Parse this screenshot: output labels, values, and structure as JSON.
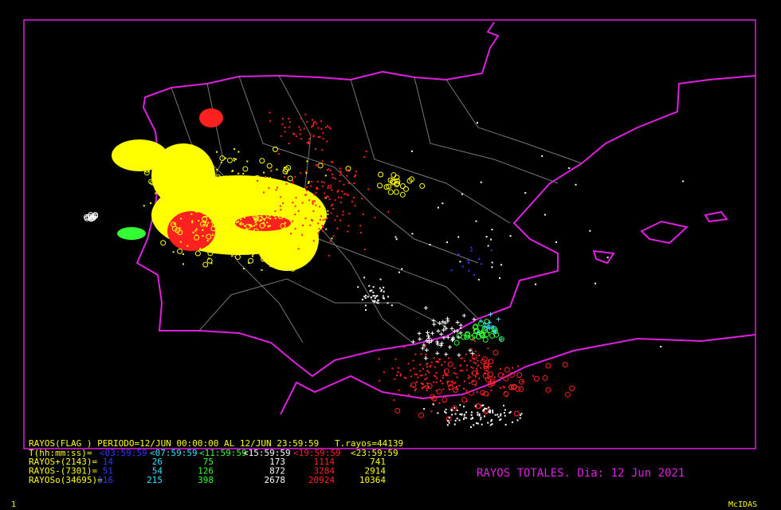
{
  "header": {
    "line": "RAYOS(FLAG ) PERIODO=12/JUN 00:00:00 AL 12/JUN 23:59:59",
    "total": "T.rayos=44139"
  },
  "intervals": {
    "label": "T(hh:mm:ss)=",
    "values": [
      "<03:59:59",
      "<07:59:59",
      "<11:59:59",
      "<15:59:59",
      "<19:59:59",
      "<23:59:59"
    ],
    "colors": [
      "#2a3cff",
      "#33e0ff",
      "#33ff33",
      "#ffffff",
      "#ff2020",
      "#ffff00"
    ]
  },
  "rows": [
    {
      "label": "RAYOS+(2143)=",
      "values": [
        14,
        26,
        75,
        173,
        1114,
        741
      ]
    },
    {
      "label": "RAYOS-(7301)=",
      "values": [
        51,
        54,
        126,
        872,
        3284,
        2914
      ]
    },
    {
      "label": "RAYOSo(34695)=",
      "values": [
        116,
        215,
        398,
        2678,
        20924,
        10364
      ]
    }
  ],
  "caption": "RAYOS TOTALES. Dia: 12 Jun 2021",
  "footer": {
    "left": "1",
    "right": "McIDAS"
  }
}
